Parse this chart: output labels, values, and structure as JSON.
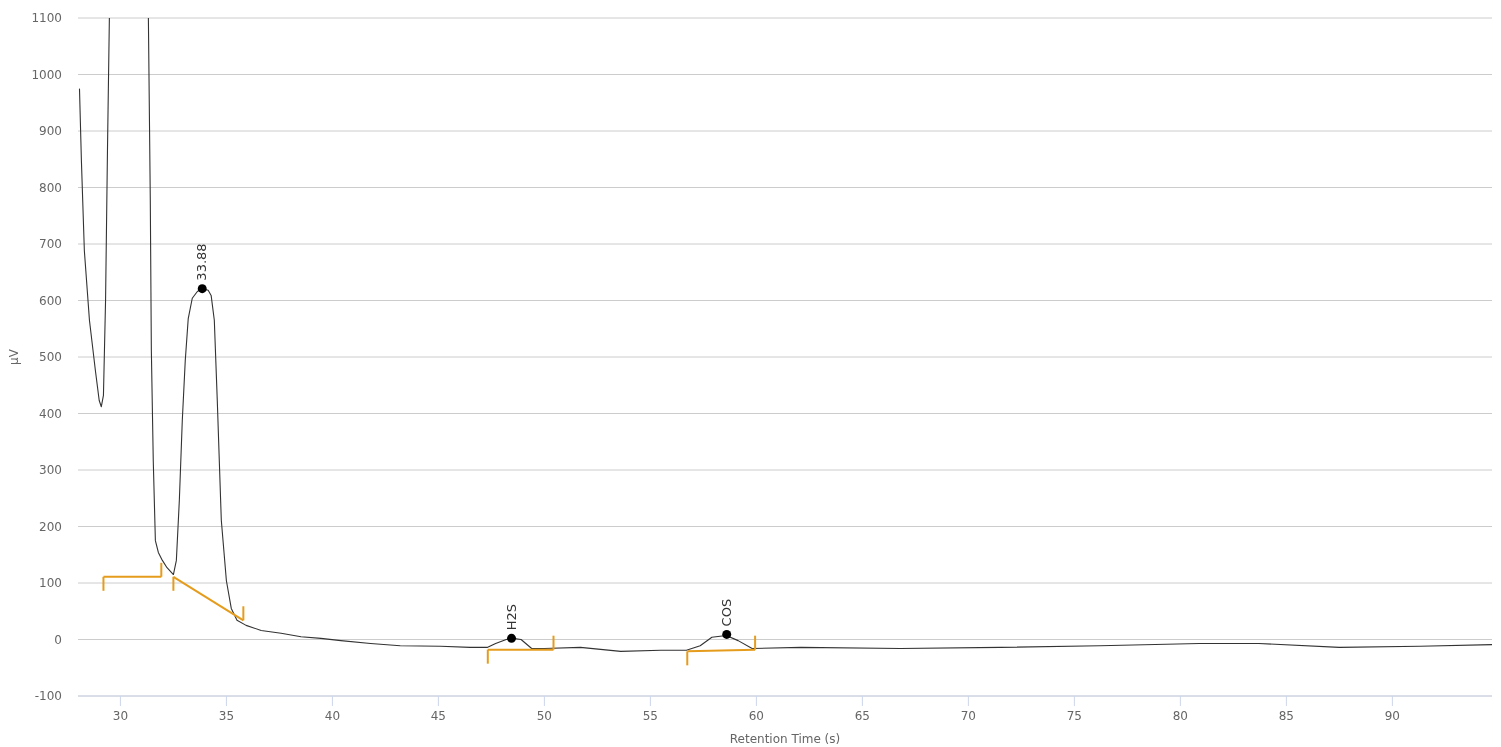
{
  "chart_data": {
    "type": "line",
    "xlabel": "Retention Time (s)",
    "ylabel": "μV",
    "xlim": [
      28,
      94.7
    ],
    "xticks": [
      30,
      35,
      40,
      45,
      50,
      55,
      60,
      65,
      70,
      75,
      80,
      85,
      90
    ],
    "ylim": [
      -100,
      1100
    ],
    "yticks": [
      -100,
      0,
      100,
      200,
      300,
      400,
      500,
      600,
      700,
      800,
      900,
      1000,
      1100
    ],
    "grid": "y",
    "series": [
      {
        "color": "#333333",
        "x": [
          28.07,
          28.16,
          28.3,
          28.54,
          28.82,
          29.0,
          29.1,
          29.2,
          29.3,
          29.39,
          29.48,
          30.5,
          31.32,
          31.41,
          31.46,
          31.55,
          31.65,
          31.79,
          31.98,
          32.2,
          32.5,
          32.64,
          32.78,
          32.92,
          33.06,
          33.2,
          33.39,
          33.63,
          33.86,
          34.14,
          34.28,
          34.43,
          34.57,
          34.76,
          35.0,
          35.23,
          35.5,
          35.93,
          36.64,
          37.58,
          38.52,
          39.46,
          40.4,
          41.8,
          43.2,
          45.1,
          46.5,
          47.3,
          47.7,
          48.2,
          48.5,
          48.9,
          49.4,
          50.0,
          51.7,
          53.6,
          55.5,
          56.7,
          57.35,
          57.9,
          58.58,
          59.14,
          59.8,
          62.1,
          66.8,
          71.5,
          76.2,
          80.9,
          83.7,
          87.5,
          91.3,
          94.7
        ],
        "values": [
          975,
          848,
          688,
          565,
          476,
          423,
          412,
          432,
          600,
          865,
          1100,
          null,
          1100,
          778,
          512,
          317,
          175,
          154,
          140,
          127,
          115,
          140,
          246,
          388,
          494,
          568,
          604,
          616,
          621,
          618,
          609,
          565,
          423,
          211,
          104,
          55,
          34,
          25,
          16,
          11,
          5,
          2,
          -2,
          -7,
          -11,
          -12,
          -14,
          -14,
          -7,
          0,
          2,
          0,
          -16,
          -16,
          -14,
          -21,
          -19,
          -19,
          -11,
          4,
          7,
          -2,
          -16,
          -14,
          -16,
          -14,
          -11,
          -7,
          -7,
          -14,
          -12,
          -9
        ]
      },
      {
        "type": "scatter",
        "color": "#000000",
        "marker": "circle",
        "x": [
          33.86,
          48.45,
          58.6
        ],
        "values": [
          621,
          2,
          9
        ]
      },
      {
        "type": "line",
        "color": "#e59c1c",
        "x": [
          29.2,
          31.93
        ],
        "values": [
          111,
          111
        ]
      },
      {
        "type": "line",
        "color": "#e59c1c",
        "x": [
          32.5,
          35.8
        ],
        "values": [
          111,
          34
        ]
      },
      {
        "type": "line",
        "color": "#e59c1c",
        "x": [
          47.33,
          50.43
        ],
        "values": [
          -18,
          -18
        ]
      },
      {
        "type": "line",
        "color": "#e59c1c",
        "x": [
          56.74,
          59.94
        ],
        "values": [
          -21,
          -18
        ]
      }
    ],
    "annotations": [
      {
        "text": "33.88",
        "x": 33.86,
        "y": 621
      },
      {
        "text": "H2S",
        "x": 48.45,
        "y": 2
      },
      {
        "text": "COS",
        "x": 58.6,
        "y": 9
      }
    ]
  }
}
